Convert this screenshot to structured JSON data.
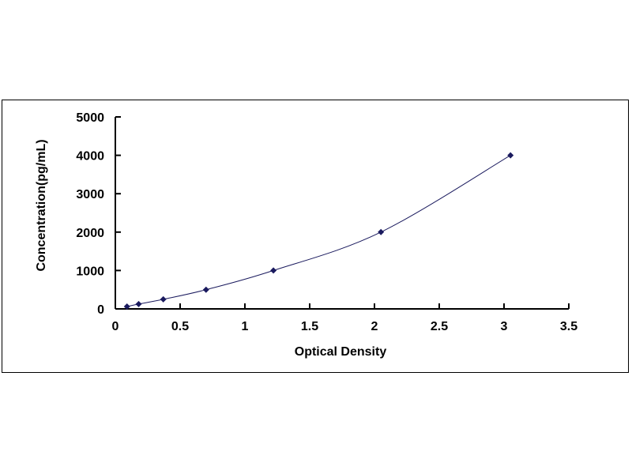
{
  "chart_data": {
    "type": "scatter",
    "title": "",
    "xlabel": "Optical Density",
    "ylabel": "Concentration(pg/mL)",
    "xlim": [
      0,
      3.5
    ],
    "ylim": [
      0,
      5000
    ],
    "xticks": [
      "0",
      "0.5",
      "1",
      "1.5",
      "2",
      "2.5",
      "3",
      "3.5"
    ],
    "yticks": [
      "0",
      "1000",
      "2000",
      "3000",
      "4000",
      "5000"
    ],
    "grid": false,
    "legend": "none",
    "marker_color": "#1a1a5e",
    "line_color": "#1a1a5e",
    "series": [
      {
        "x": [
          0.09,
          0.18,
          0.37,
          0.7,
          1.22,
          2.05,
          3.05
        ],
        "y": [
          62.5,
          125,
          250,
          500,
          1000,
          2000,
          4000
        ]
      }
    ]
  }
}
